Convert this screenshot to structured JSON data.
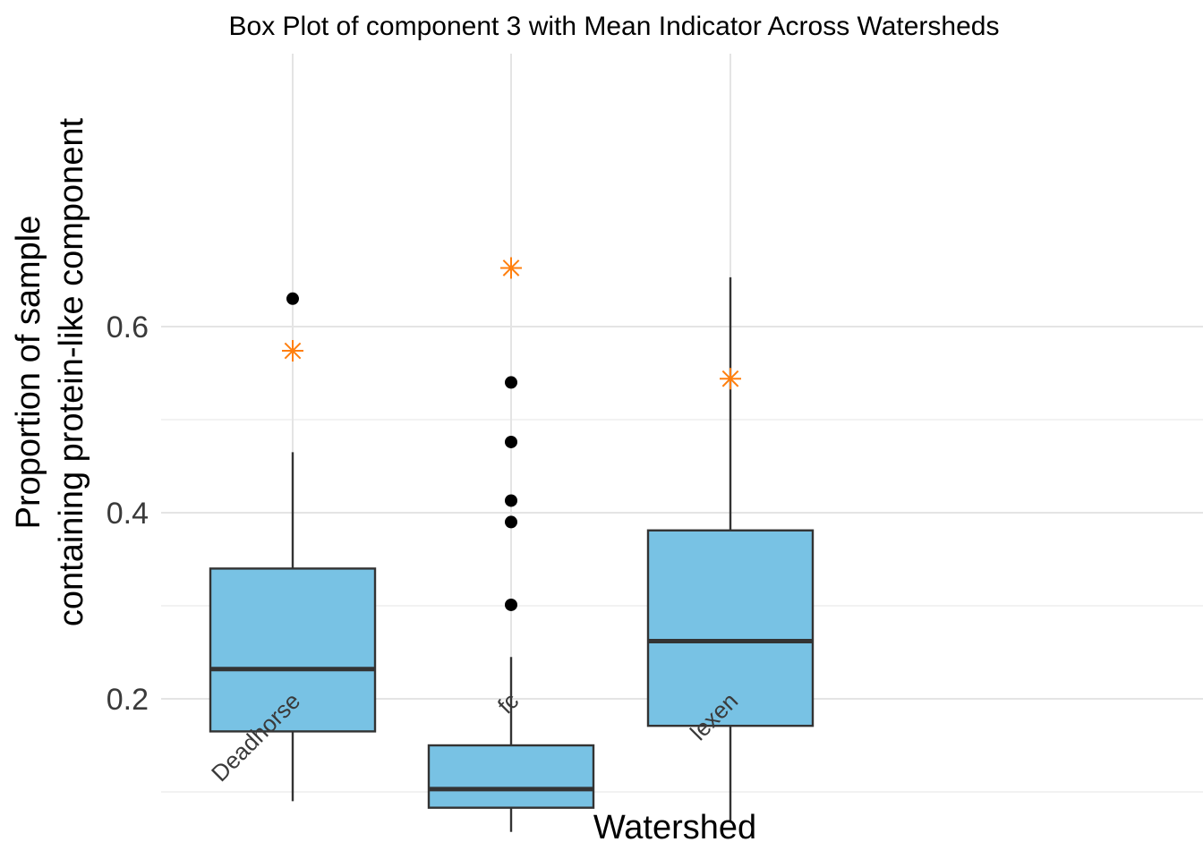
{
  "chart_data": {
    "type": "boxplot",
    "title": "Box Plot of component 3 with Mean Indicator Across Watersheds",
    "xlabel": "Watershed",
    "ylabel_lines": [
      "Proportion of sample",
      "containing protein-like component"
    ],
    "ylim": [
      0.04,
      0.7
    ],
    "yticks": [
      0.2,
      0.4,
      0.6
    ],
    "ytick_labels": [
      "0.2",
      "0.4",
      "0.6"
    ],
    "grid": true,
    "legend": "none",
    "colors": {
      "box_fill": "#78C2E4",
      "box_line": "#333333",
      "mean_marker": "#FF7F0E",
      "outlier": "#000000"
    },
    "categories": [
      "Deadhorse",
      "fc",
      "lexen"
    ],
    "boxes": [
      {
        "name": "Deadhorse",
        "whisker_low": 0.09,
        "q1": 0.165,
        "median": 0.232,
        "q3": 0.34,
        "whisker_high": 0.465,
        "mean": 0.574,
        "outliers": [
          0.63
        ]
      },
      {
        "name": "fc",
        "whisker_low": 0.057,
        "q1": 0.083,
        "median": 0.103,
        "q3": 0.15,
        "whisker_high": 0.245,
        "mean": 0.663,
        "outliers": [
          0.54,
          0.476,
          0.413,
          0.39,
          0.301
        ]
      },
      {
        "name": "lexen",
        "whisker_low": 0.068,
        "q1": 0.171,
        "median": 0.262,
        "q3": 0.381,
        "whisker_high": 0.653,
        "mean": 0.544,
        "outliers": []
      }
    ]
  }
}
